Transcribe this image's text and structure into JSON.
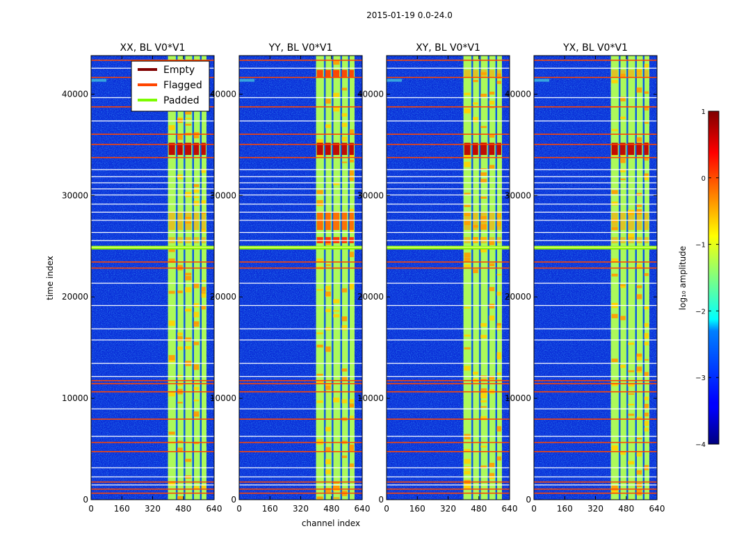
{
  "figure_title": "2015-01-19 0.0-24.0",
  "chart_data": {
    "type": "heatmap",
    "suptitle": "2015-01-19 0.0-24.0",
    "xlabel": "channel index",
    "ylabel": "time index",
    "xlim": [
      0,
      640
    ],
    "ylim": [
      0,
      43800
    ],
    "xticks": [
      "0",
      "160",
      "320",
      "480",
      "640"
    ],
    "yticks": [
      "0",
      "10000",
      "20000",
      "30000",
      "40000"
    ],
    "ytick_values": [
      0,
      10000,
      20000,
      30000,
      40000
    ],
    "xtick_values": [
      0,
      160,
      320,
      480,
      640
    ],
    "panels": [
      {
        "title": "XX, BL V0*V1",
        "polarization": "XX"
      },
      {
        "title": "YY, BL V0*V1",
        "polarization": "YY"
      },
      {
        "title": "XY, BL V0*V1",
        "polarization": "XY"
      },
      {
        "title": "YX, BL V0*V1",
        "polarization": "YX"
      }
    ],
    "legend": {
      "position": "top-right of first panel",
      "entries": [
        {
          "label": "Empty",
          "color": "#800000"
        },
        {
          "label": "Flagged",
          "color": "#ff4500"
        },
        {
          "label": "Padded",
          "color": "#7cfc00"
        }
      ]
    },
    "colorbar": {
      "label": "log₁₀ amplitude",
      "range": [
        -4,
        1
      ],
      "ticks": [
        "1",
        "0",
        "−1",
        "−2",
        "−3",
        "−4"
      ],
      "colormap": "jet"
    },
    "signal_band_channels": [
      400,
      600
    ],
    "sub_bands_channels": [
      [
        400,
        440
      ],
      [
        445,
        480
      ],
      [
        485,
        525
      ],
      [
        530,
        565
      ],
      [
        570,
        600
      ]
    ],
    "flagged_time_indices": [
      700,
      1100,
      1800,
      4800,
      5700,
      8000,
      10700,
      11500,
      11800,
      22900,
      23500,
      24800,
      33800,
      35100,
      36100,
      38800,
      41700,
      43400
    ],
    "padded_time_indices": [
      24900
    ]
  }
}
